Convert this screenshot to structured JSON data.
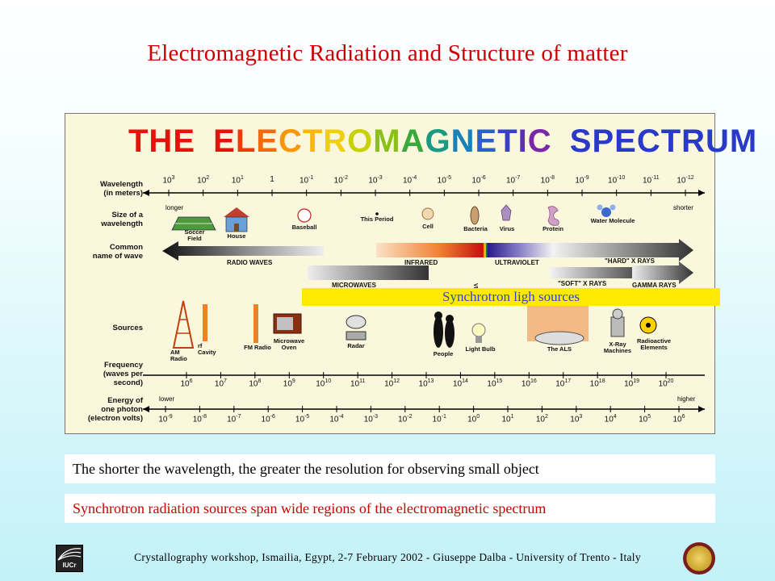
{
  "slide_title": "Electromagnetic Radiation and Structure of matter",
  "figure": {
    "title_words": [
      "THE",
      "ELECTROMAGNETIC",
      "SPECTRUM"
    ],
    "row_labels": {
      "wavelength": "Wavelength\n(in meters)",
      "size": "Size of a\nwavelength",
      "common_name": "Common\nname of wave",
      "sources": "Sources",
      "frequency": "Frequency\n(waves per\nsecond)",
      "energy": "Energy of\none photon\n(electron volts)"
    },
    "wavelength_ticks": [
      {
        "base": "10",
        "exp": "3"
      },
      {
        "base": "10",
        "exp": "2"
      },
      {
        "base": "10",
        "exp": "1"
      },
      {
        "base": "1",
        "exp": ""
      },
      {
        "base": "10",
        "exp": "-1"
      },
      {
        "base": "10",
        "exp": "-2"
      },
      {
        "base": "10",
        "exp": "-3"
      },
      {
        "base": "10",
        "exp": "-4"
      },
      {
        "base": "10",
        "exp": "-5"
      },
      {
        "base": "10",
        "exp": "-6"
      },
      {
        "base": "10",
        "exp": "-7"
      },
      {
        "base": "10",
        "exp": "-8"
      },
      {
        "base": "10",
        "exp": "-9"
      },
      {
        "base": "10",
        "exp": "-10"
      },
      {
        "base": "10",
        "exp": "-11"
      },
      {
        "base": "10",
        "exp": "-12"
      }
    ],
    "wavelength_ends": {
      "left": "longer",
      "right": "shorter"
    },
    "size_objects": [
      "Soccer\nField",
      "House",
      "Baseball",
      "This Period",
      "Cell",
      "Bacteria",
      "Virus",
      "Protein",
      "Water Molecule"
    ],
    "wave_names": {
      "radio": "RADIO WAVES",
      "infrared": "INFRARED",
      "visible": "VISIBLE",
      "ultraviolet": "ULTRAVIOLET",
      "hard_xrays": "\"HARD\" X RAYS",
      "microwaves": "MICROWAVES",
      "soft_xrays": "\"SOFT\" X RAYS",
      "gamma": "GAMMA RAYS"
    },
    "synchrotron_band": "Synchrotron ligh sources",
    "sources": [
      "AM\nRadio",
      "rf\nCavity",
      "FM Radio",
      "Microwave\nOven",
      "Radar",
      "People",
      "Light Bulb",
      "The ALS",
      "X-Ray\nMachines",
      "Radioactive\nElements"
    ],
    "frequency_ticks": [
      "6",
      "7",
      "8",
      "9",
      "10",
      "11",
      "12",
      "13",
      "14",
      "15",
      "16",
      "17",
      "18",
      "19",
      "20"
    ],
    "energy_ticks": [
      "-9",
      "-8",
      "-7",
      "-6",
      "-5",
      "-4",
      "-3",
      "-2",
      "-1",
      "0",
      "1",
      "2",
      "3",
      "4",
      "5",
      "6"
    ],
    "energy_ends": {
      "left": "lower",
      "right": "higher"
    }
  },
  "caption_1": "The shorter the wavelength, the greater the resolution for observing small object",
  "caption_2": "Synchrotron radiation sources span wide regions of the electromagnetic spectrum",
  "footer": "Crystallography workshop, Ismailia, Egypt, 2-7 February  2002 - Giuseppe Dalba -  University of Trento - Italy",
  "logo_left_text": "IUCr",
  "colors": {
    "title_red": "#cc0000",
    "synchrotron_band": "#ffea00",
    "synchrotron_text": "#3344cc",
    "figure_bg": "#fbf7dc"
  }
}
